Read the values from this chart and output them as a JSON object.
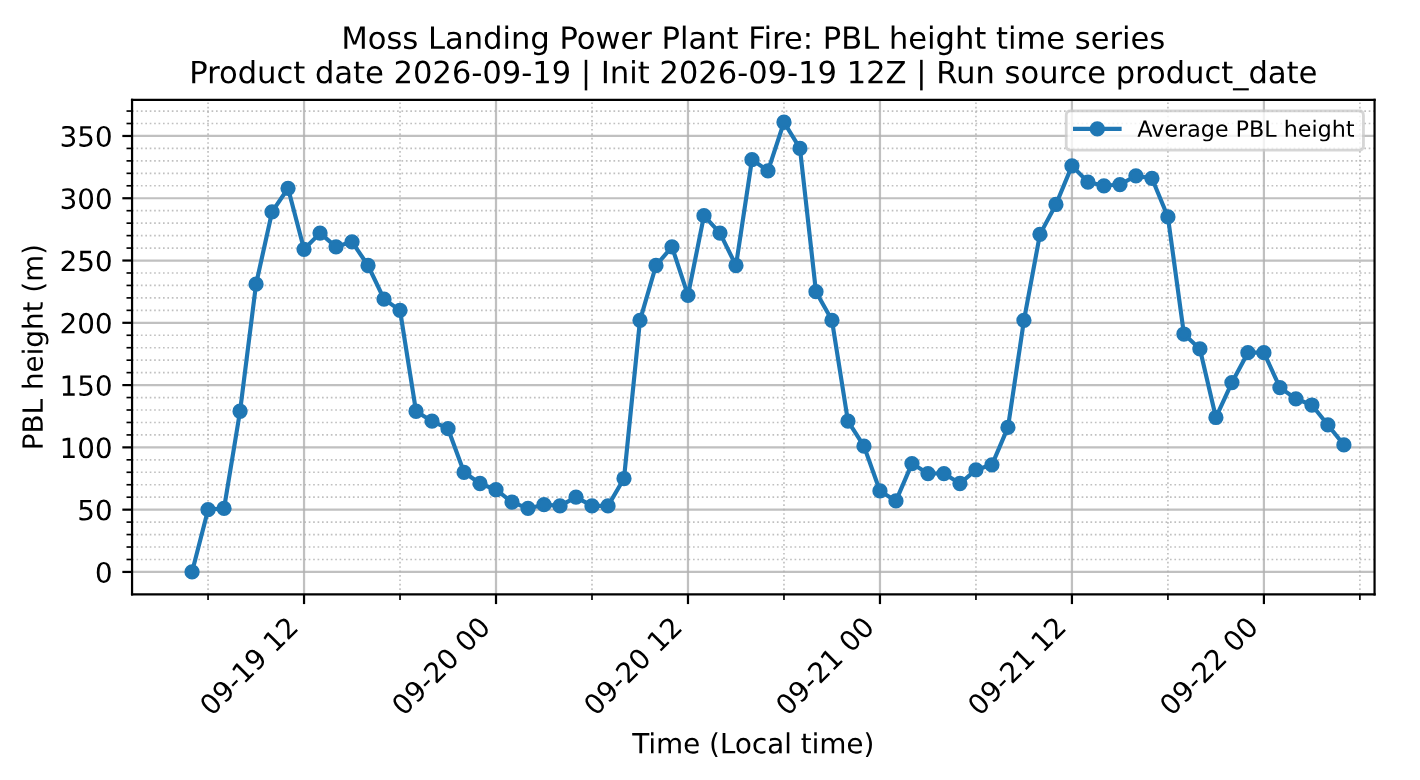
{
  "chart_data": {
    "type": "line",
    "title": "Moss Landing Power Plant Fire: PBL height time series\nProduct date 2026-09-19 | Init 2026-09-19 12Z | Run source product_date",
    "xlabel": "Time (Local time)",
    "ylabel": "PBL height (m)",
    "x": [
      "2026-09-19T05:00",
      "2026-09-19T06:00",
      "2026-09-19T07:00",
      "2026-09-19T08:00",
      "2026-09-19T09:00",
      "2026-09-19T10:00",
      "2026-09-19T11:00",
      "2026-09-19T12:00",
      "2026-09-19T13:00",
      "2026-09-19T14:00",
      "2026-09-19T15:00",
      "2026-09-19T16:00",
      "2026-09-19T17:00",
      "2026-09-19T18:00",
      "2026-09-19T19:00",
      "2026-09-19T20:00",
      "2026-09-19T21:00",
      "2026-09-19T22:00",
      "2026-09-19T23:00",
      "2026-09-20T00:00",
      "2026-09-20T01:00",
      "2026-09-20T02:00",
      "2026-09-20T03:00",
      "2026-09-20T04:00",
      "2026-09-20T05:00",
      "2026-09-20T06:00",
      "2026-09-20T07:00",
      "2026-09-20T08:00",
      "2026-09-20T09:00",
      "2026-09-20T10:00",
      "2026-09-20T11:00",
      "2026-09-20T12:00",
      "2026-09-20T13:00",
      "2026-09-20T14:00",
      "2026-09-20T15:00",
      "2026-09-20T16:00",
      "2026-09-20T17:00",
      "2026-09-20T18:00",
      "2026-09-20T19:00",
      "2026-09-20T20:00",
      "2026-09-20T21:00",
      "2026-09-20T22:00",
      "2026-09-20T23:00",
      "2026-09-21T00:00",
      "2026-09-21T01:00",
      "2026-09-21T02:00",
      "2026-09-21T03:00",
      "2026-09-21T04:00",
      "2026-09-21T05:00",
      "2026-09-21T06:00",
      "2026-09-21T07:00",
      "2026-09-21T08:00",
      "2026-09-21T09:00",
      "2026-09-21T10:00",
      "2026-09-21T11:00",
      "2026-09-21T12:00",
      "2026-09-21T13:00",
      "2026-09-21T14:00",
      "2026-09-21T15:00",
      "2026-09-21T16:00",
      "2026-09-21T17:00",
      "2026-09-21T18:00",
      "2026-09-21T19:00",
      "2026-09-21T20:00",
      "2026-09-21T21:00",
      "2026-09-21T22:00",
      "2026-09-21T23:00",
      "2026-09-22T00:00",
      "2026-09-22T01:00",
      "2026-09-22T02:00",
      "2026-09-22T03:00",
      "2026-09-22T04:00",
      "2026-09-22T05:00"
    ],
    "series": [
      {
        "name": "Average PBL height",
        "color": "#1f77b4",
        "values": [
          0,
          50,
          51,
          129,
          231,
          289,
          308,
          259,
          272,
          261,
          265,
          246,
          219,
          210,
          129,
          121,
          115,
          80,
          71,
          66,
          56,
          51,
          54,
          53,
          60,
          53,
          53,
          75,
          202,
          246,
          261,
          222,
          286,
          272,
          246,
          331,
          322,
          361,
          340,
          225,
          202,
          121,
          101,
          65,
          57,
          87,
          79,
          79,
          71,
          82,
          86,
          116,
          202,
          271,
          295,
          326,
          313,
          310,
          311,
          318,
          316,
          285,
          191,
          179,
          124,
          152,
          176,
          176,
          148,
          139,
          134,
          118,
          102
        ]
      }
    ],
    "xlim": [
      "2026-09-19T01:15",
      "2026-09-22T06:55"
    ],
    "xticks": [
      {
        "value": "2026-09-19T06:00",
        "label": null
      },
      {
        "value": "2026-09-19T12:00",
        "label": "09-19 12"
      },
      {
        "value": "2026-09-19T18:00",
        "label": null
      },
      {
        "value": "2026-09-20T00:00",
        "label": "09-20 00"
      },
      {
        "value": "2026-09-20T06:00",
        "label": null
      },
      {
        "value": "2026-09-20T12:00",
        "label": "09-20 12"
      },
      {
        "value": "2026-09-20T18:00",
        "label": null
      },
      {
        "value": "2026-09-21T00:00",
        "label": "09-21 00"
      },
      {
        "value": "2026-09-21T06:00",
        "label": null
      },
      {
        "value": "2026-09-21T12:00",
        "label": "09-21 12"
      },
      {
        "value": "2026-09-21T18:00",
        "label": null
      },
      {
        "value": "2026-09-22T00:00",
        "label": "09-22 00"
      },
      {
        "value": "2026-09-22T06:00",
        "label": null
      }
    ],
    "ylim": [
      -18,
      379
    ],
    "yticks": [
      0,
      {
        "value": 10,
        "label": null
      },
      {
        "value": 20,
        "label": null
      },
      {
        "value": 30,
        "label": null
      },
      {
        "value": 40,
        "label": null
      },
      50,
      {
        "value": 60,
        "label": null
      },
      {
        "value": 70,
        "label": null
      },
      {
        "value": 80,
        "label": null
      },
      {
        "value": 90,
        "label": null
      },
      100,
      {
        "value": 110,
        "label": null
      },
      {
        "value": 120,
        "label": null
      },
      {
        "value": 130,
        "label": null
      },
      {
        "value": 140,
        "label": null
      },
      150,
      {
        "value": 160,
        "label": null
      },
      {
        "value": 170,
        "label": null
      },
      {
        "value": 180,
        "label": null
      },
      {
        "value": 190,
        "label": null
      },
      200,
      {
        "value": 210,
        "label": null
      },
      {
        "value": 220,
        "label": null
      },
      {
        "value": 230,
        "label": null
      },
      {
        "value": 240,
        "label": null
      },
      250,
      {
        "value": 260,
        "label": null
      },
      {
        "value": 270,
        "label": null
      },
      {
        "value": 280,
        "label": null
      },
      {
        "value": 290,
        "label": null
      },
      300,
      {
        "value": 310,
        "label": null
      },
      {
        "value": 320,
        "label": null
      },
      {
        "value": 330,
        "label": null
      },
      {
        "value": 340,
        "label": null
      },
      350,
      {
        "value": 360,
        "label": null
      },
      {
        "value": 370,
        "label": null
      }
    ],
    "grid": true,
    "legend": "top right",
    "marker": "circle",
    "line_style": "solid"
  }
}
